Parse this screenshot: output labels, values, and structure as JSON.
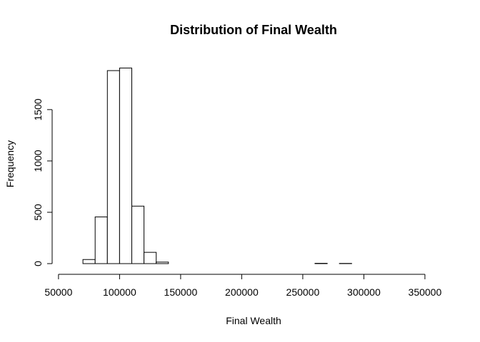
{
  "chart_data": {
    "type": "histogram",
    "title": "Distribution of Final Wealth",
    "xlabel": "Final Wealth",
    "ylabel": "Frequency",
    "xlim": [
      60000,
      360000
    ],
    "ylim": [
      0,
      1950
    ],
    "bin_width": 10000,
    "x_ticks": [
      50000,
      100000,
      150000,
      200000,
      250000,
      300000,
      350000
    ],
    "x_tick_labels": [
      "50000",
      "100000",
      "150000",
      "200000",
      "250000",
      "300000",
      "350000"
    ],
    "y_ticks": [
      0,
      500,
      1000,
      1500
    ],
    "y_tick_labels": [
      "0",
      "500",
      "1000",
      "1500"
    ],
    "bins": [
      {
        "start": 60000,
        "end": 70000,
        "count": 0
      },
      {
        "start": 70000,
        "end": 80000,
        "count": 40
      },
      {
        "start": 80000,
        "end": 90000,
        "count": 455
      },
      {
        "start": 90000,
        "end": 100000,
        "count": 1880
      },
      {
        "start": 100000,
        "end": 110000,
        "count": 1905
      },
      {
        "start": 110000,
        "end": 120000,
        "count": 560
      },
      {
        "start": 120000,
        "end": 130000,
        "count": 110
      },
      {
        "start": 130000,
        "end": 140000,
        "count": 15
      },
      {
        "start": 140000,
        "end": 150000,
        "count": 0
      },
      {
        "start": 150000,
        "end": 160000,
        "count": 0
      },
      {
        "start": 160000,
        "end": 170000,
        "count": 0
      },
      {
        "start": 170000,
        "end": 180000,
        "count": 0
      },
      {
        "start": 180000,
        "end": 190000,
        "count": 0
      },
      {
        "start": 190000,
        "end": 200000,
        "count": 0
      },
      {
        "start": 200000,
        "end": 210000,
        "count": 0
      },
      {
        "start": 210000,
        "end": 220000,
        "count": 0
      },
      {
        "start": 220000,
        "end": 230000,
        "count": 0
      },
      {
        "start": 230000,
        "end": 240000,
        "count": 0
      },
      {
        "start": 240000,
        "end": 250000,
        "count": 0
      },
      {
        "start": 250000,
        "end": 260000,
        "count": 0
      },
      {
        "start": 260000,
        "end": 270000,
        "count": 3
      },
      {
        "start": 270000,
        "end": 280000,
        "count": 0
      },
      {
        "start": 280000,
        "end": 290000,
        "count": 2
      },
      {
        "start": 290000,
        "end": 300000,
        "count": 0
      },
      {
        "start": 300000,
        "end": 310000,
        "count": 0
      },
      {
        "start": 310000,
        "end": 320000,
        "count": 0
      },
      {
        "start": 320000,
        "end": 330000,
        "count": 0
      },
      {
        "start": 330000,
        "end": 340000,
        "count": 0
      },
      {
        "start": 340000,
        "end": 350000,
        "count": 0
      },
      {
        "start": 350000,
        "end": 360000,
        "count": 0
      }
    ]
  }
}
